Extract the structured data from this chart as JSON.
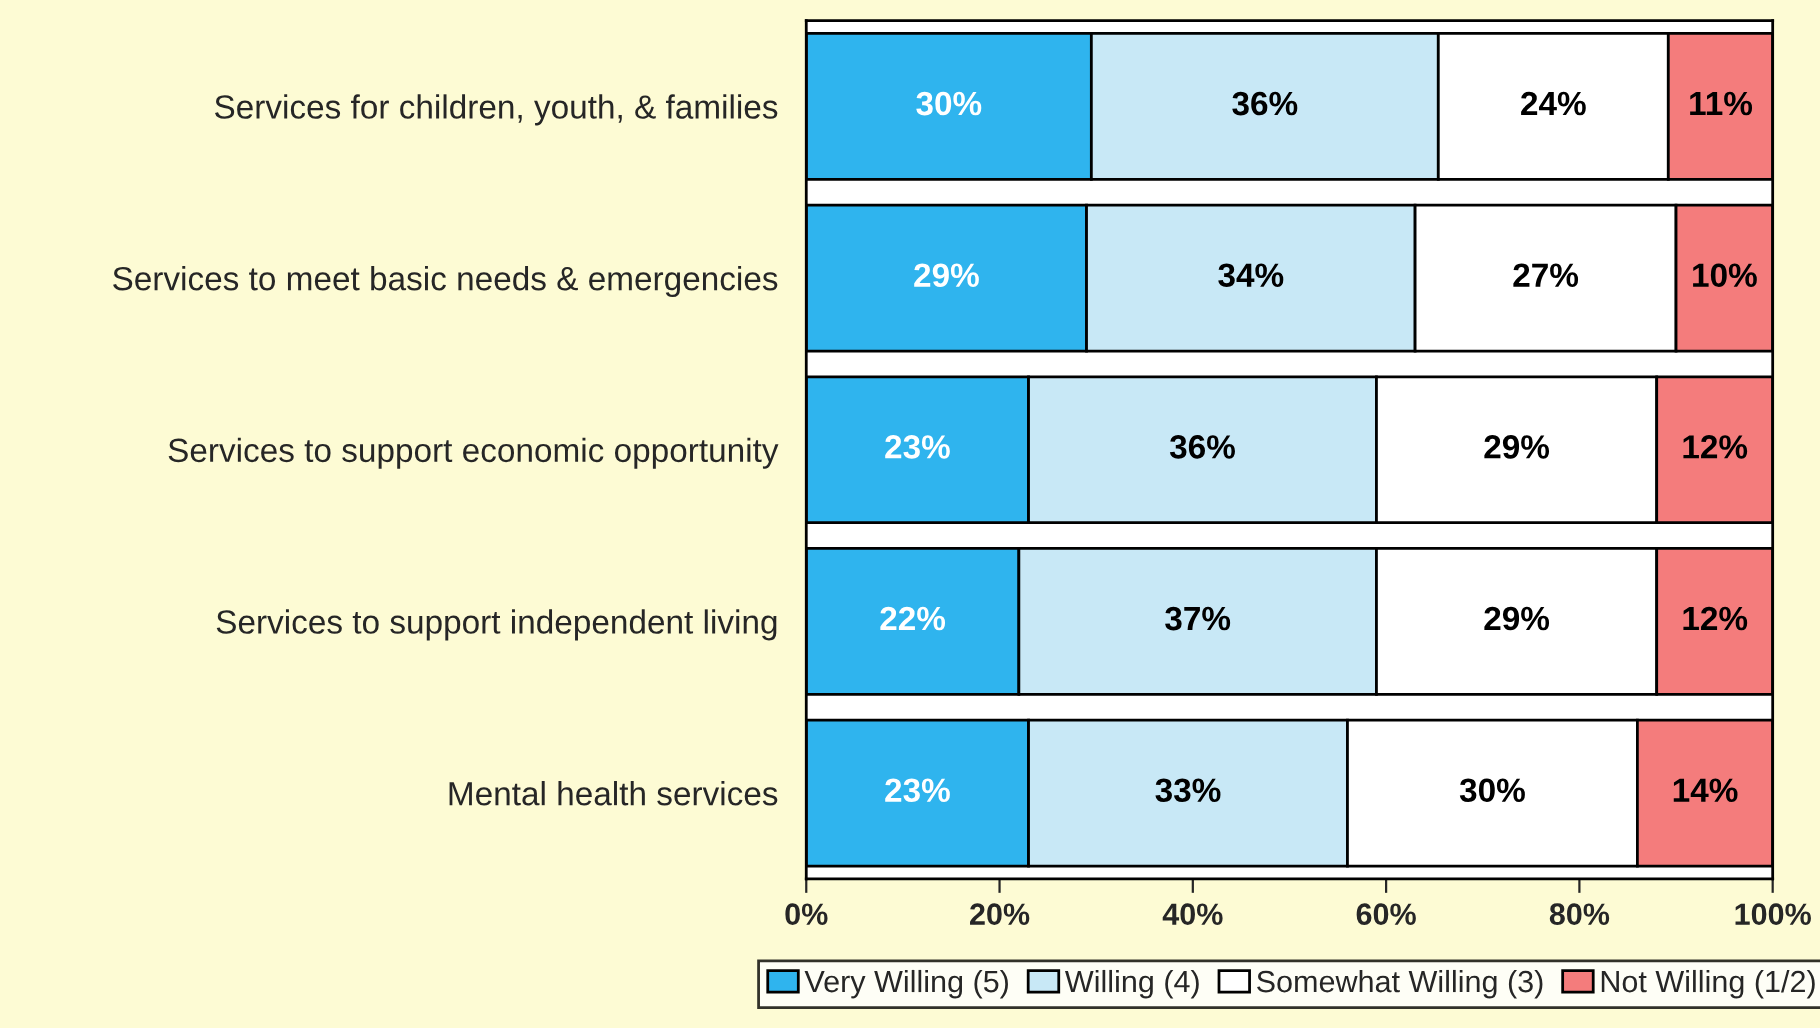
{
  "chart_data": {
    "type": "bar",
    "orientation": "horizontal",
    "stacked": true,
    "categories": [
      "Services for children, youth, & families",
      "Services to meet basic needs & emergencies",
      "Services to support economic opportunity",
      "Services to support independent living",
      "Mental health services"
    ],
    "series": [
      {
        "name": "Very Willing (5)",
        "color": "#2fb4ee",
        "values": [
          29.5,
          29,
          23,
          22,
          23
        ],
        "value_labels": [
          "30%",
          "29%",
          "23%",
          "22%",
          "23%"
        ]
      },
      {
        "name": "Willing (4)",
        "color": "#c8e8f6",
        "values": [
          35.9,
          34,
          36,
          37,
          33
        ],
        "value_labels": [
          "36%",
          "34%",
          "36%",
          "37%",
          "33%"
        ]
      },
      {
        "name": "Somewhat Willing (3)",
        "color": "#ffffff",
        "values": [
          23.8,
          27,
          29,
          29,
          30
        ],
        "value_labels": [
          "24%",
          "27%",
          "29%",
          "29%",
          "30%"
        ]
      },
      {
        "name": "Not Willing (1/2)",
        "color": "#f47c7c",
        "values": [
          10.8,
          10,
          12,
          12,
          14
        ],
        "value_labels": [
          "11%",
          "10%",
          "12%",
          "12%",
          "14%"
        ]
      }
    ],
    "xlim": [
      0,
      100
    ],
    "xticks": [
      {
        "value": 0,
        "label": "0%"
      },
      {
        "value": 20,
        "label": "20%"
      },
      {
        "value": 40,
        "label": "40%"
      },
      {
        "value": 60,
        "label": "60%"
      },
      {
        "value": 80,
        "label": "80%"
      },
      {
        "value": 100,
        "label": "100%"
      }
    ],
    "legend": "bottom",
    "grid": false
  }
}
